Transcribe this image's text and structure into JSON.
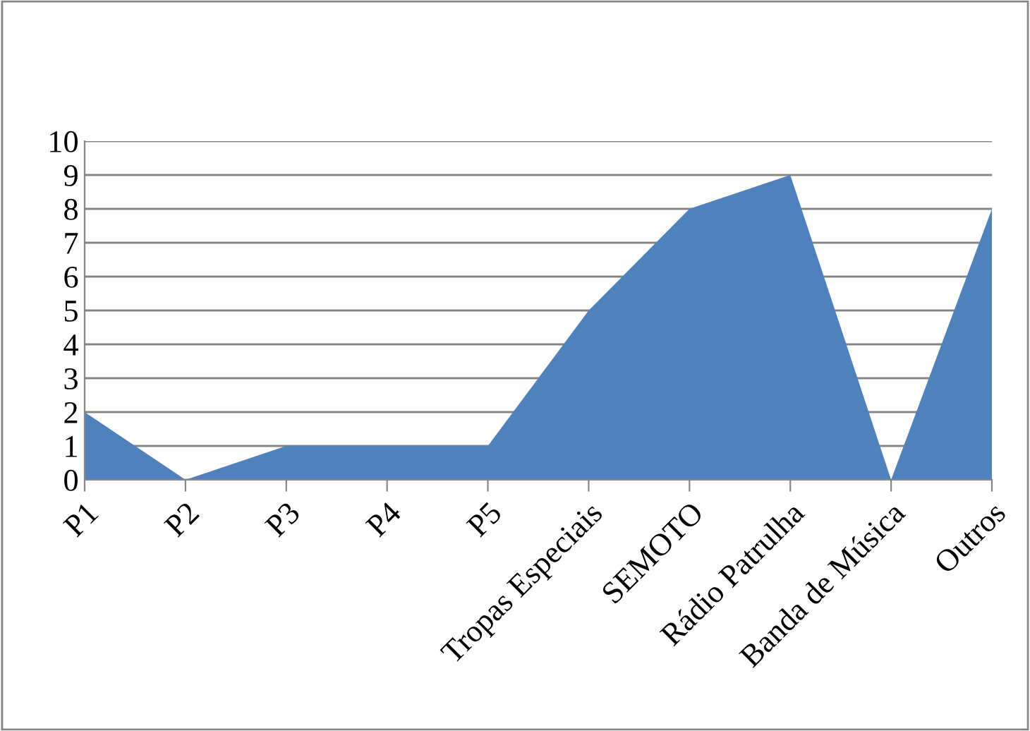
{
  "chart_data": {
    "type": "area",
    "categories": [
      "P1",
      "P2",
      "P3",
      "P4",
      "P5",
      "Tropas Especiais",
      "SEMOTO",
      "Rádio Patrulha",
      "Banda de Música",
      "Outros"
    ],
    "series": [
      {
        "color": "#4f81bd",
        "values": [
          2,
          0,
          1,
          1,
          1,
          5,
          8,
          9,
          0,
          8
        ]
      }
    ],
    "ylim": [
      0,
      10
    ],
    "yticks": [
      0,
      1,
      2,
      3,
      4,
      5,
      6,
      7,
      8,
      9,
      10
    ],
    "grid": "y",
    "legend": false
  }
}
